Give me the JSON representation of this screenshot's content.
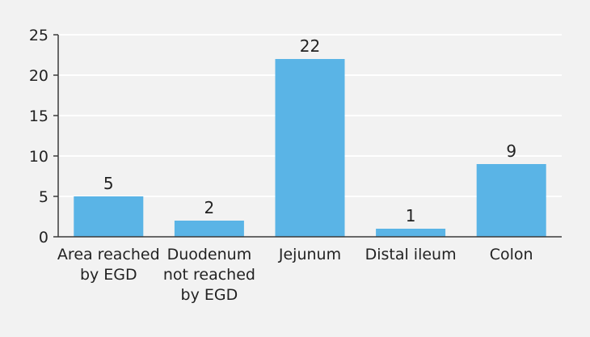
{
  "chart_data": {
    "type": "bar",
    "categories": [
      [
        "Area reached",
        "by EGD"
      ],
      [
        "Duodenum",
        "not reached",
        "by EGD"
      ],
      [
        "Jejunum"
      ],
      [
        "Distal ileum"
      ],
      [
        "Colon"
      ]
    ],
    "values": [
      5,
      2,
      22,
      1,
      9
    ],
    "data_labels": [
      "5",
      "2",
      "22",
      "1",
      "9"
    ],
    "y_ticks": [
      "0",
      "5",
      "10",
      "15",
      "20",
      "25"
    ],
    "ylim": [
      0,
      25
    ],
    "grid": true,
    "title": "",
    "xlabel": "",
    "ylabel": "",
    "colors": {
      "bar": "#5ab4e6",
      "grid": "#ffffff",
      "axis": "#3a3a3a",
      "background": "#f2f2f2"
    }
  }
}
